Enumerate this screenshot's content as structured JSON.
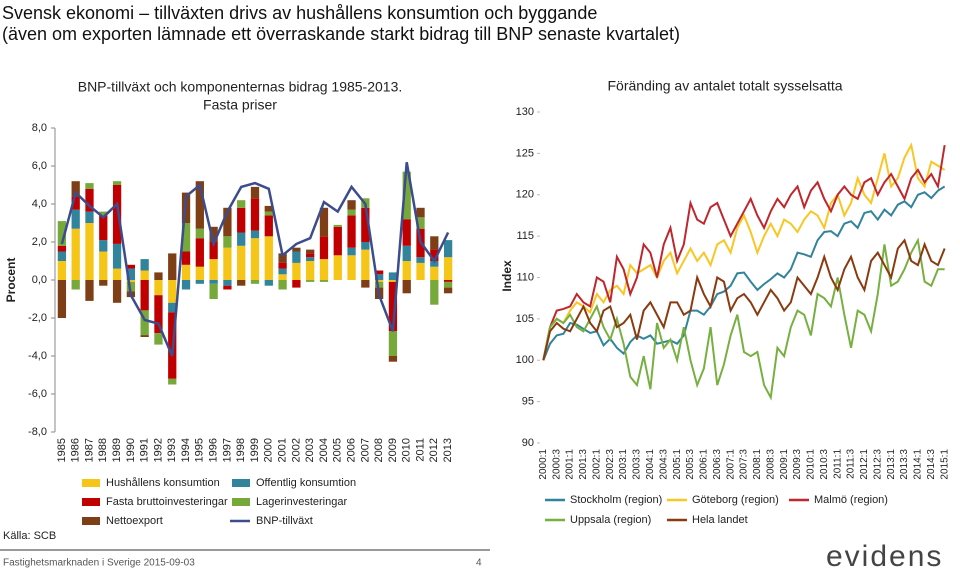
{
  "title_lines": [
    "Svensk ekonomi – tillväxten drivs av hushållens konsumtion och byggande",
    "(även om exporten lämnade ett överraskande starkt bidrag till BNP senaste kvartalet)"
  ],
  "source": "Källa: SCB",
  "footer": {
    "text": "Fastighetsmarknaden i Sverige 2015-09-03",
    "page": 4,
    "logo": "evidens"
  },
  "chart_data": [
    {
      "type": "bar",
      "stacked": true,
      "title": "BNP-tillväxt och komponenternas bidrag 1985-2013. Fasta priser",
      "ylabel": "Procent",
      "categories": [
        "1985",
        "1986",
        "1987",
        "1988",
        "1989",
        "1990",
        "1991",
        "1992",
        "1993",
        "1994",
        "1995",
        "1996",
        "1997",
        "1998",
        "1999",
        "2000",
        "2001",
        "2002",
        "2003",
        "2004",
        "2005",
        "2006",
        "2007",
        "2008",
        "2009",
        "2010",
        "2011",
        "2012",
        "2013"
      ],
      "series": [
        {
          "name": "Hushållens konsumtion",
          "color": "#f5c518",
          "values": [
            1.0,
            2.7,
            3.0,
            1.5,
            0.6,
            -0.1,
            0.5,
            -0.8,
            -1.2,
            0.8,
            0.7,
            1.1,
            1.7,
            1.8,
            2.2,
            2.3,
            0.3,
            0.9,
            1.0,
            1.1,
            1.3,
            1.3,
            1.6,
            -0.1,
            -0.1,
            1.0,
            0.9,
            0.7,
            1.2
          ]
        },
        {
          "name": "Offentlig konsumtion",
          "color": "#31849b",
          "values": [
            0.5,
            1.0,
            0.6,
            0.6,
            1.3,
            0.6,
            0.6,
            0.0,
            -0.5,
            -0.5,
            -0.2,
            -0.2,
            -0.3,
            0.7,
            0.4,
            -0.3,
            0.3,
            0.6,
            0.2,
            0.0,
            0.0,
            0.4,
            0.4,
            0.3,
            0.4,
            0.8,
            0.3,
            0.3,
            0.9
          ]
        },
        {
          "name": "Fasta bruttoinvesteringar",
          "color": "#c00000",
          "values": [
            0.3,
            0.7,
            1.2,
            1.3,
            3.1,
            0.2,
            -1.6,
            -2.0,
            -3.5,
            0.7,
            1.5,
            0.9,
            -0.2,
            1.3,
            1.7,
            1.1,
            0.3,
            -0.4,
            0.2,
            1.2,
            1.5,
            1.7,
            1.8,
            0.2,
            -2.6,
            1.4,
            1.5,
            0.6,
            -0.1
          ]
        },
        {
          "name": "Lagerinvesteringar",
          "color": "#77a83a",
          "values": [
            1.3,
            -0.5,
            0.3,
            0.2,
            0.2,
            -0.5,
            -1.3,
            -0.6,
            -0.3,
            1.5,
            0.5,
            -0.8,
            0.6,
            0.4,
            -0.2,
            0.2,
            -0.5,
            0.0,
            -0.1,
            -0.1,
            0.1,
            0.3,
            0.5,
            -0.3,
            -1.3,
            2.5,
            0.6,
            -1.3,
            -0.3
          ]
        },
        {
          "name": "Nettoexport",
          "color": "#7f3f16",
          "values": [
            -2.0,
            0.8,
            -1.1,
            -0.3,
            -1.2,
            -0.3,
            -0.1,
            0.4,
            1.4,
            1.6,
            2.5,
            0.8,
            1.5,
            -0.3,
            0.6,
            0.3,
            0.5,
            0.2,
            0.2,
            1.5,
            0.0,
            0.5,
            -0.4,
            -0.6,
            -0.3,
            -0.7,
            0.5,
            0.7,
            -0.3
          ]
        },
        {
          "name": "BNP-tillväxt",
          "type": "line",
          "color": "#3c4c8c",
          "values": [
            1.9,
            4.6,
            3.9,
            3.3,
            4.0,
            -0.8,
            -2.1,
            -2.3,
            -4.0,
            4.4,
            5.0,
            1.9,
            3.6,
            4.9,
            5.1,
            4.8,
            1.3,
            1.9,
            2.2,
            4.1,
            3.6,
            4.9,
            4.0,
            -0.8,
            -2.7,
            6.2,
            2.0,
            1.0,
            2.5
          ]
        }
      ],
      "ylim": [
        -8,
        8
      ],
      "yticks": [
        {
          "value": -8,
          "label": "-8,0"
        },
        {
          "value": -6,
          "label": "-6,0"
        },
        {
          "value": -4,
          "label": "-4,0"
        },
        {
          "value": -2,
          "label": "-2,0"
        },
        {
          "value": 0,
          "label": "0,0"
        },
        {
          "value": 2,
          "label": "2,0"
        },
        {
          "value": 4,
          "label": "4,0"
        },
        {
          "value": 6,
          "label": "6,0"
        },
        {
          "value": 8,
          "label": "8,0"
        }
      ]
    },
    {
      "type": "line",
      "title": "Föränding av antalet totalt sysselsatta",
      "ylabel": "Index",
      "categories": [
        "2000:1",
        null,
        "2000:3",
        null,
        "2001:1",
        null,
        "2001:3",
        null,
        "2002:1",
        null,
        "2002:3",
        null,
        "2003:1",
        null,
        "2003:3",
        null,
        "2004:1",
        null,
        "2004:3",
        null,
        "2005:1",
        null,
        "2005:3",
        null,
        "2006:1",
        null,
        "2006:3",
        null,
        "2007:1",
        null,
        "2007:3",
        null,
        "2008:1",
        null,
        "2008:3",
        null,
        "2009:1",
        null,
        "2009:3",
        null,
        "2010:1",
        null,
        "2010:3",
        null,
        "2011:1",
        null,
        "2011:3",
        null,
        "2012:1",
        null,
        "2012:3",
        null,
        "2013:1",
        null,
        "2013:3",
        null,
        "2014:1",
        null,
        "2014:3",
        null,
        "2015:1"
      ],
      "series": [
        {
          "name": "Stockholm (region)",
          "color": "#31849b",
          "values": [
            100,
            102,
            103,
            103.2,
            104.5,
            104.3,
            103.8,
            103.3,
            103.5,
            101.8,
            102.6,
            101.5,
            100.8,
            102.2,
            103,
            102.6,
            103,
            102,
            102.2,
            102.4,
            102,
            103,
            106,
            106,
            105.5,
            106.5,
            108,
            108.3,
            109,
            110.5,
            110.6,
            109.5,
            108.5,
            109.2,
            109.8,
            110.5,
            110,
            111,
            113,
            112.8,
            112.5,
            114.5,
            115.5,
            115.6,
            115,
            116.5,
            116.8,
            116,
            117.8,
            118,
            117,
            118.2,
            117.5,
            118.8,
            119.2,
            118.5,
            120,
            120.3,
            119.6,
            120.5,
            121
          ]
        },
        {
          "name": "Göteborg (region)",
          "color": "#f9c623",
          "values": [
            100,
            104,
            105,
            104.5,
            106,
            107,
            106.5,
            105.8,
            108,
            107,
            108.5,
            109,
            108,
            111.5,
            110.5,
            111,
            111.5,
            110,
            112,
            113,
            110.5,
            112,
            113.5,
            112,
            113,
            111.5,
            114,
            114.5,
            113,
            116,
            117.5,
            115.5,
            113,
            115,
            116.5,
            115,
            117,
            116.5,
            115.5,
            117,
            118,
            117.5,
            116,
            119,
            120,
            117.5,
            119,
            122,
            120,
            119,
            122,
            125,
            121,
            122,
            124.5,
            126,
            122,
            121,
            124,
            123.5,
            123
          ]
        },
        {
          "name": "Malmö (region)",
          "color": "#c0262d",
          "values": [
            100,
            104,
            106,
            106.2,
            106.5,
            108,
            107,
            106.5,
            110,
            109.5,
            107,
            112.5,
            111,
            108,
            110,
            114,
            113,
            110,
            114,
            116,
            112,
            114,
            119,
            117,
            116.5,
            118.5,
            119,
            117,
            115,
            116.5,
            118,
            119.5,
            117.5,
            116,
            118,
            119.5,
            118.5,
            120,
            121,
            118.5,
            120.5,
            121.5,
            119.5,
            118,
            120,
            121,
            120,
            119.5,
            121.5,
            122,
            120,
            121.5,
            122.5,
            121,
            119.5,
            122,
            123,
            121.5,
            122.5,
            121,
            126
          ]
        },
        {
          "name": "Uppsala (region)",
          "color": "#77b041",
          "values": [
            100,
            104,
            105,
            104.5,
            105.5,
            104,
            103.5,
            105,
            106.5,
            104,
            102.5,
            105,
            102,
            98,
            97,
            100.5,
            96.5,
            104.5,
            101.5,
            102.5,
            100,
            104,
            100,
            97,
            99,
            104,
            97,
            99.5,
            103,
            105.5,
            101,
            100.5,
            101,
            97,
            95.5,
            101.5,
            100.5,
            104,
            106,
            105.5,
            103,
            108,
            107.5,
            106.5,
            110,
            105.5,
            101.5,
            106,
            105.5,
            103.5,
            108,
            114,
            109,
            109.5,
            111,
            113,
            114.5,
            109.5,
            109,
            111,
            111
          ]
        },
        {
          "name": "Hela landet",
          "color": "#8b3a10",
          "values": [
            100,
            103.5,
            104.5,
            103.8,
            103.5,
            105,
            106.5,
            104.5,
            103.5,
            106,
            106.5,
            104,
            104.5,
            105.5,
            102.5,
            106,
            107,
            105.5,
            104,
            107,
            107,
            105.5,
            106,
            110,
            108,
            106.5,
            110,
            109.5,
            106,
            107.5,
            108,
            107,
            105.5,
            107,
            108.5,
            107.5,
            106,
            107,
            110,
            109,
            108,
            110,
            112.5,
            110,
            108.5,
            111,
            112.5,
            110,
            108.5,
            112,
            113,
            111.5,
            110,
            113.5,
            114.5,
            112,
            111.5,
            114,
            112,
            111.5,
            113.5
          ]
        }
      ],
      "ylim": [
        90,
        130
      ],
      "yticks": [
        90,
        95,
        100,
        105,
        110,
        115,
        120,
        125,
        130
      ]
    }
  ]
}
